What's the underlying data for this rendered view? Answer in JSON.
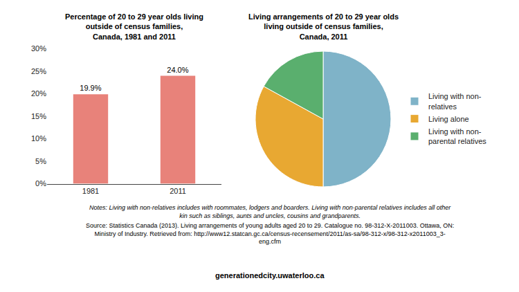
{
  "chart_data": [
    {
      "type": "bar",
      "title": "Percentage of 20 to 29 year olds living\noutside of census families,\nCanada, 1981 and 2011",
      "categories": [
        "1981",
        "2011"
      ],
      "values": [
        19.9,
        24.0
      ],
      "value_labels": [
        "19.9%",
        "24.0%"
      ],
      "data_labels": true,
      "color": "#e8827a",
      "ylim": [
        0,
        30
      ],
      "yticks": [
        {
          "value": 0,
          "label": "0%"
        },
        {
          "value": 5,
          "label": "5%"
        },
        {
          "value": 10,
          "label": "10%"
        },
        {
          "value": 15,
          "label": "15%"
        },
        {
          "value": 20,
          "label": "20%"
        },
        {
          "value": 25,
          "label": "25%"
        },
        {
          "value": 30,
          "label": "30%"
        }
      ],
      "grid": false
    },
    {
      "type": "pie",
      "title": "Living arrangements of 20 to 29 year olds\nliving outside of census families,\nCanada, 2011",
      "categories": [
        "Living with non-\nrelatives",
        "Living alone",
        "Living with non-\nparental relatives"
      ],
      "values": [
        50,
        33,
        17
      ],
      "colors": [
        "#7fb3c8",
        "#e8a832",
        "#5aaf6e"
      ],
      "legend": "right"
    }
  ],
  "annotations": [
    "Notes: Living with non-relatives includes with roommates, lodgers and boarders. Living with non-parental relatives includes all other\nkin such as siblings, aunts and uncles, cousins and grandparents.",
    "Source: Statistics Canada (2013). Living arrangements of young adults aged 20 to 29. Catalogue no. 98-312-X-2011003. Ottawa, ON:\nMinistry of Industry. Retrieved from: http://www12.statcan.gc.ca/census-recensement/2011/as-sa/98-312-x/98-312-x2011003_3-\neng.cfm",
    "generationedcity.uwaterloo.ca"
  ]
}
